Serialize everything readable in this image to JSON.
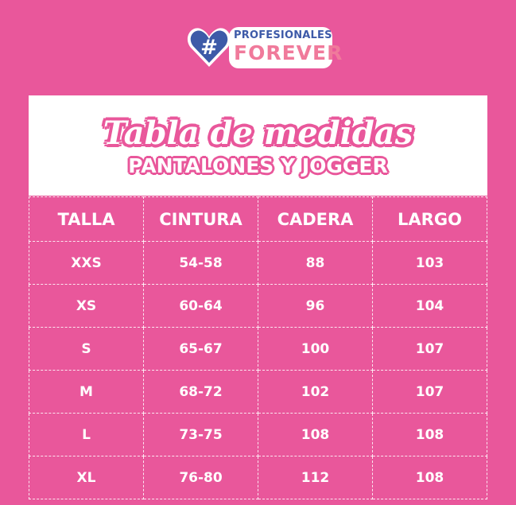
{
  "colors": {
    "background": "#e9579b",
    "logo_blue": "#3d5aa8",
    "logo_pink": "#f07a9b"
  },
  "logo": {
    "line1": "PROFESIONALES",
    "line2": "FOREVER",
    "icon": "hashtag-heart-icon"
  },
  "title": {
    "script": "Tabla de medidas",
    "subtitle": "PANTALONES Y JOGGER"
  },
  "table": {
    "headers": [
      "TALLA",
      "CINTURA",
      "CADERA",
      "LARGO"
    ],
    "rows": [
      [
        "XXS",
        "54-58",
        "88",
        "103"
      ],
      [
        "XS",
        "60-64",
        "96",
        "104"
      ],
      [
        "S",
        "65-67",
        "100",
        "107"
      ],
      [
        "M",
        "68-72",
        "102",
        "107"
      ],
      [
        "L",
        "73-75",
        "108",
        "108"
      ],
      [
        "XL",
        "76-80",
        "112",
        "108"
      ]
    ]
  }
}
